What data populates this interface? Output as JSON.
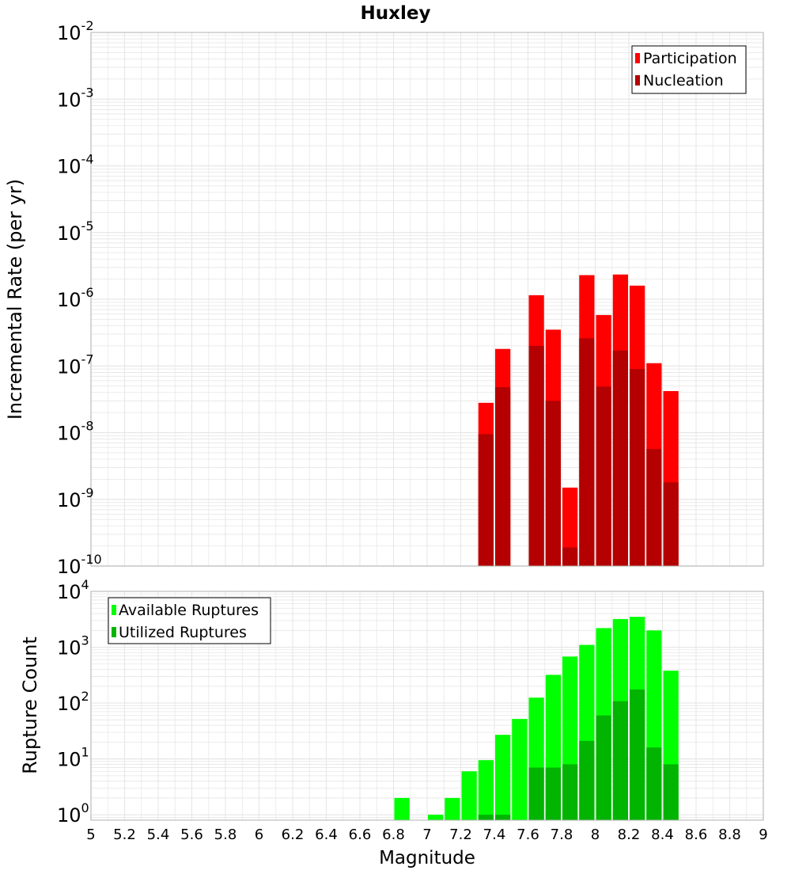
{
  "title": "Huxley",
  "colors": {
    "participation": "#ff0000",
    "nucleation": "#b40000",
    "available": "#00ff00",
    "utilized": "#00b400",
    "grid": "#e6e6e6",
    "frame": "#b0b0b0"
  },
  "chart_data": [
    {
      "type": "bar",
      "ylabel": "Incremental Rate (per yr)",
      "yscale": "log",
      "ylim": [
        1e-10,
        0.01
      ],
      "xlim": [
        5,
        9
      ],
      "grid": true,
      "legend_position": "top-right",
      "series": [
        {
          "name": "Participation",
          "color": "#ff0000",
          "x": [
            7.35,
            7.45,
            7.65,
            7.75,
            7.85,
            7.95,
            8.05,
            8.15,
            8.25,
            8.35,
            8.45
          ],
          "values": [
            2.8e-08,
            1.8e-07,
            1.15e-06,
            3.5e-07,
            1.5e-09,
            2.3e-06,
            5.8e-07,
            2.35e-06,
            1.6e-06,
            1.1e-07,
            4.2e-08
          ]
        },
        {
          "name": "Nucleation",
          "color": "#b40000",
          "x": [
            7.35,
            7.45,
            7.65,
            7.75,
            7.85,
            7.95,
            8.05,
            8.15,
            8.25,
            8.35,
            8.45
          ],
          "values": [
            9.5e-09,
            4.8e-08,
            2e-07,
            3e-08,
            1.9e-10,
            2.6e-07,
            4.9e-08,
            1.7e-07,
            9e-08,
            5.7e-09,
            1.8e-09
          ]
        }
      ]
    },
    {
      "type": "bar",
      "xlabel": "Magnitude",
      "ylabel": "Rupture Count",
      "yscale": "log",
      "ylim": [
        0.8,
        10000
      ],
      "xlim": [
        5,
        9
      ],
      "grid": true,
      "legend_position": "top-left",
      "x_ticks": [
        "5",
        "5.2",
        "5.4",
        "5.6",
        "5.8",
        "6",
        "6.2",
        "6.4",
        "6.6",
        "6.8",
        "7",
        "7.2",
        "7.4",
        "7.6",
        "7.8",
        "8",
        "8.2",
        "8.4",
        "8.6",
        "8.8",
        "9"
      ],
      "series": [
        {
          "name": "Available Ruptures",
          "color": "#00ff00",
          "x": [
            6.85,
            7.05,
            7.15,
            7.25,
            7.35,
            7.45,
            7.55,
            7.65,
            7.75,
            7.85,
            7.95,
            8.05,
            8.15,
            8.25,
            8.35,
            8.45
          ],
          "values": [
            2,
            1,
            2,
            6,
            9.5,
            27,
            52,
            125,
            320,
            680,
            1100,
            2200,
            3200,
            3500,
            2000,
            380
          ]
        },
        {
          "name": "Utilized Ruptures",
          "color": "#00b400",
          "x": [
            7.35,
            7.45,
            7.65,
            7.75,
            7.85,
            7.95,
            8.05,
            8.15,
            8.25,
            8.35,
            8.45
          ],
          "values": [
            1,
            1,
            7,
            7,
            8,
            21,
            60,
            108,
            175,
            16,
            8
          ]
        }
      ]
    }
  ]
}
